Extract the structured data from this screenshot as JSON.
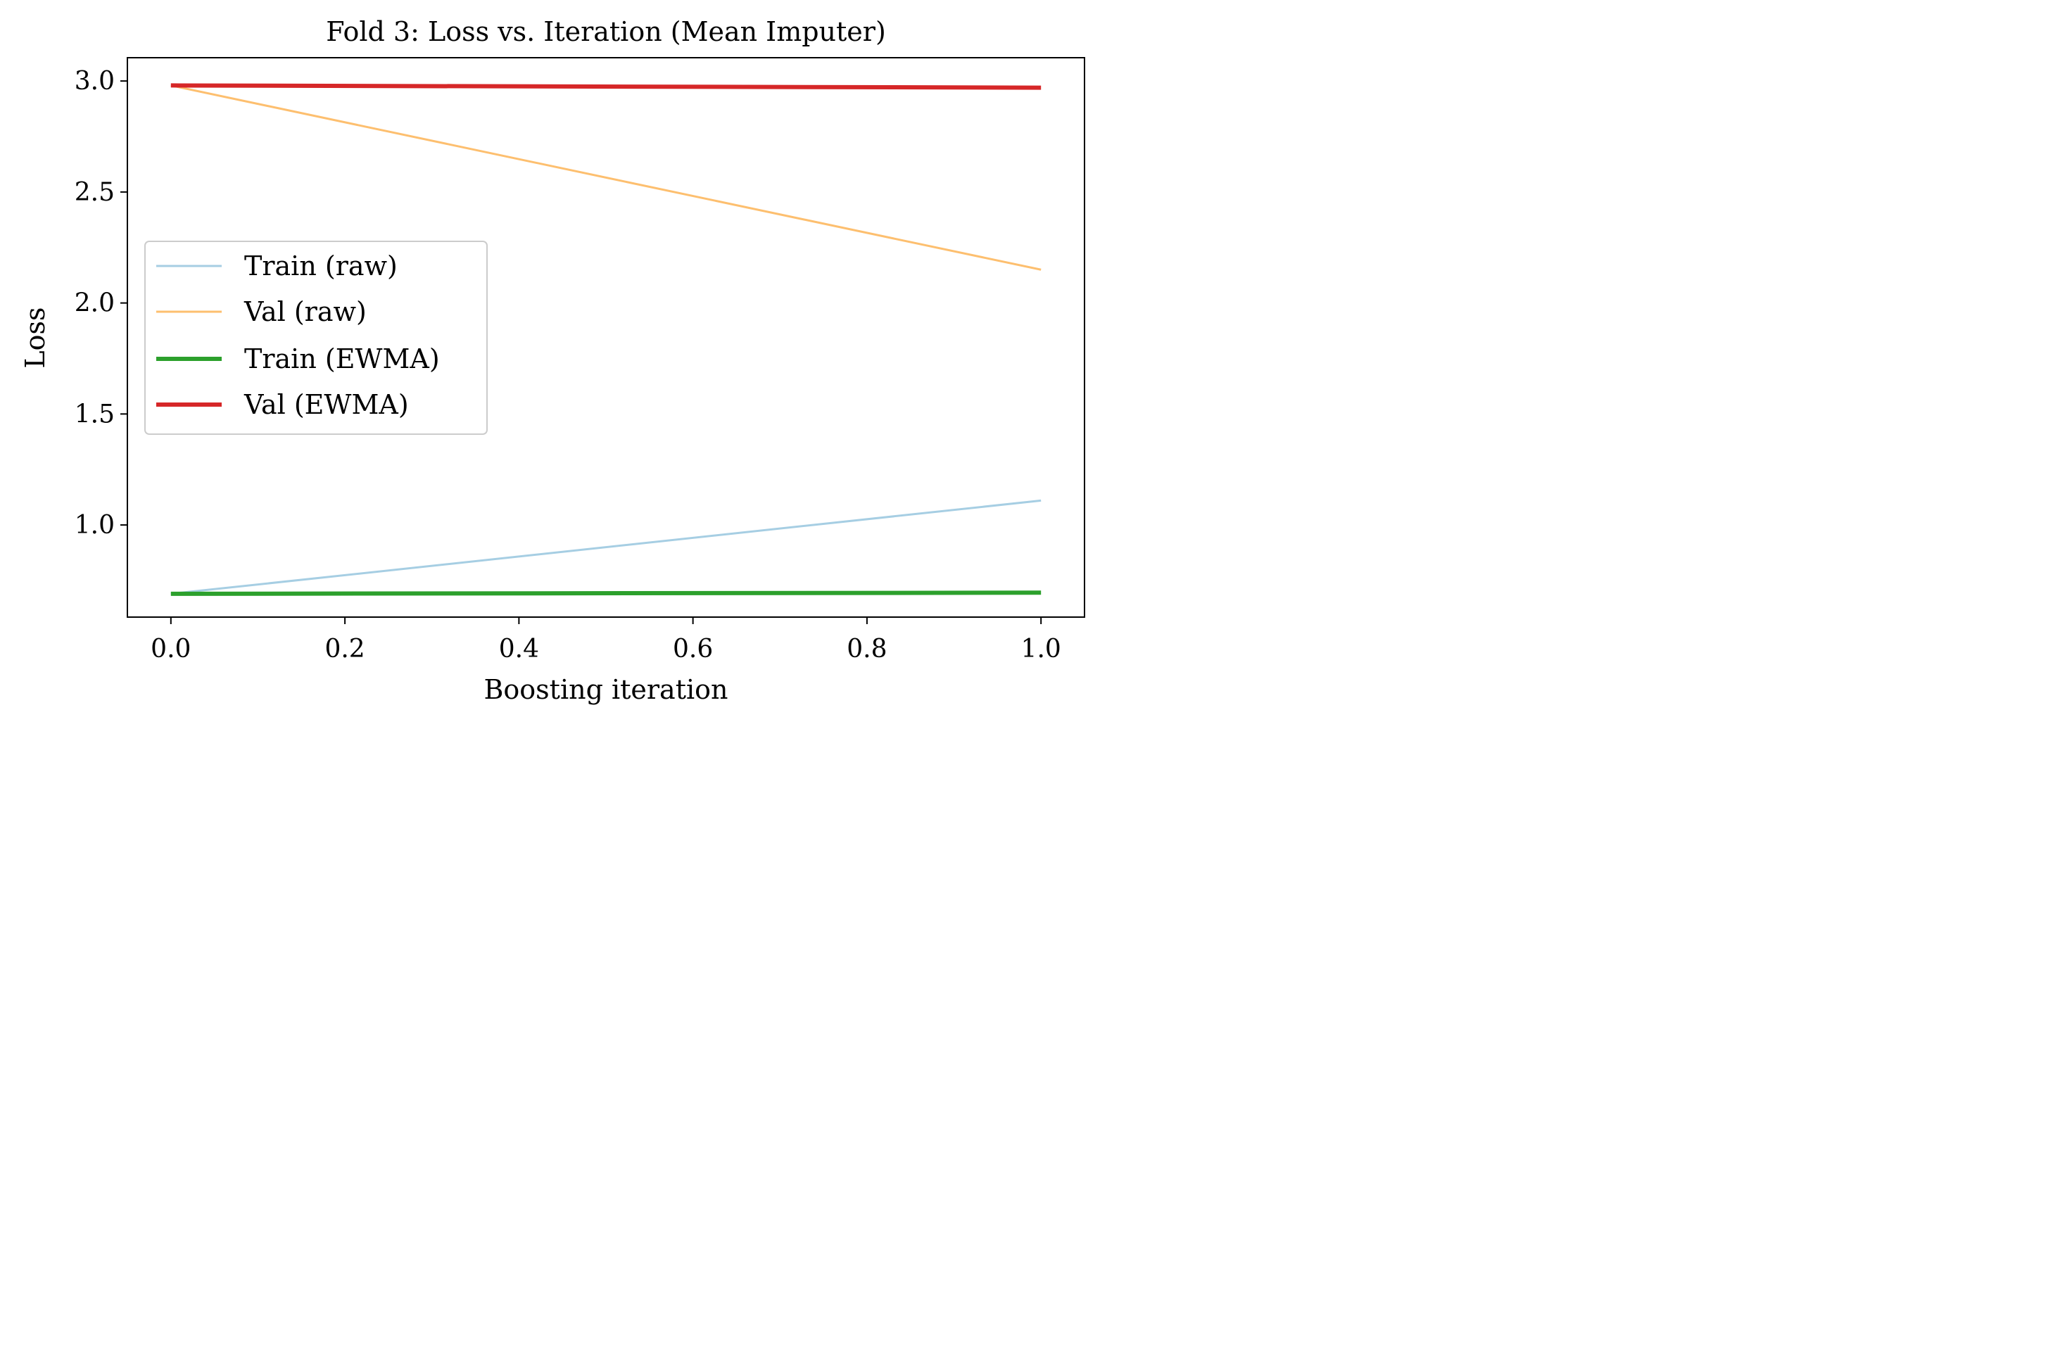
{
  "chart_data": {
    "type": "line",
    "title": "Fold 3: Loss vs. Iteration (Mean Imputer)",
    "xlabel": "Boosting iteration",
    "ylabel": "Loss",
    "xlim": [
      -0.05,
      1.05
    ],
    "ylim": [
      0.585,
      3.105
    ],
    "xticks": [
      0.0,
      0.2,
      0.4,
      0.6,
      0.8,
      1.0
    ],
    "xtick_labels": [
      "0.0",
      "0.2",
      "0.4",
      "0.6",
      "0.8",
      "1.0"
    ],
    "yticks": [
      1.0,
      1.5,
      2.0,
      2.5,
      3.0
    ],
    "ytick_labels": [
      "1.0",
      "1.5",
      "2.0",
      "2.5",
      "3.0"
    ],
    "grid": false,
    "legend_position": "center-left",
    "series": [
      {
        "name": "Train (raw)",
        "x": [
          0,
          1
        ],
        "y": [
          0.69,
          1.11
        ],
        "color": "#a6cee3",
        "weight": "thin"
      },
      {
        "name": "Val (raw)",
        "x": [
          0,
          1
        ],
        "y": [
          2.98,
          2.15
        ],
        "color": "#fdbf6f",
        "weight": "thin"
      },
      {
        "name": "Train (EWMA)",
        "x": [
          0,
          1
        ],
        "y": [
          0.69,
          0.695
        ],
        "color": "#2ca02c",
        "weight": "thick"
      },
      {
        "name": "Val (EWMA)",
        "x": [
          0,
          1
        ],
        "y": [
          2.98,
          2.97
        ],
        "color": "#d62728",
        "weight": "thick"
      }
    ]
  }
}
